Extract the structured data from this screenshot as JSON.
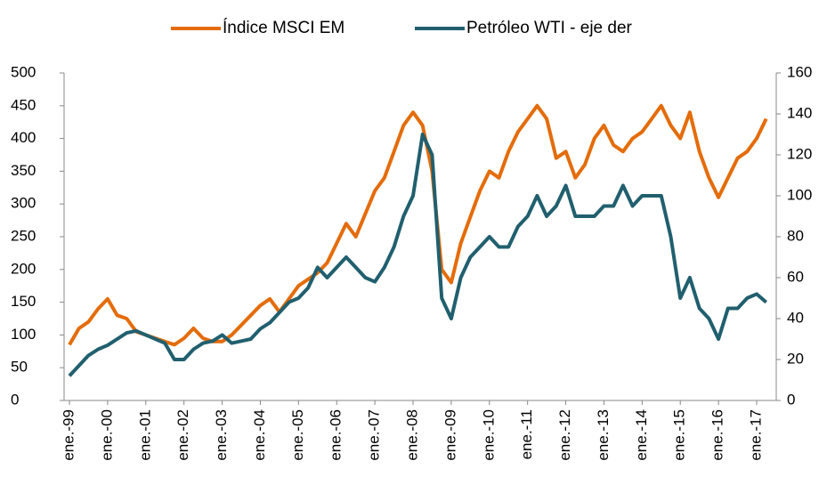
{
  "chart_data": {
    "type": "line",
    "categories": [
      "ene.-99",
      null,
      null,
      null,
      "ene.-00",
      null,
      null,
      null,
      "ene.-01",
      null,
      null,
      null,
      "ene.-02",
      null,
      null,
      null,
      "ene.-03",
      null,
      null,
      null,
      "ene.-04",
      null,
      null,
      null,
      "ene.-05",
      null,
      null,
      null,
      "ene.-06",
      null,
      null,
      null,
      "ene.-07",
      null,
      null,
      null,
      "ene.-08",
      null,
      null,
      null,
      "ene.-09",
      null,
      null,
      null,
      "ene.-10",
      null,
      null,
      null,
      "ene.-11",
      null,
      null,
      null,
      "ene.-12",
      null,
      null,
      null,
      "ene.-13",
      null,
      null,
      null,
      "ene.-14",
      null,
      null,
      null,
      "ene.-15",
      null,
      null,
      null,
      "ene.-16",
      null,
      null,
      null,
      "ene.-17",
      null
    ],
    "series": [
      {
        "name": "Índice MSCI EM",
        "color": "#e46c0a",
        "values": [
          85,
          110,
          120,
          140,
          155,
          130,
          125,
          105,
          100,
          95,
          90,
          85,
          95,
          110,
          95,
          90,
          90,
          100,
          115,
          130,
          145,
          155,
          135,
          155,
          175,
          185,
          195,
          210,
          240,
          270,
          250,
          285,
          320,
          340,
          380,
          420,
          440,
          420,
          350,
          200,
          180,
          240,
          280,
          320,
          350,
          340,
          380,
          410,
          430,
          450,
          430,
          370,
          380,
          340,
          360,
          400,
          420,
          390,
          380,
          400,
          410,
          430,
          450,
          420,
          400,
          440,
          380,
          340,
          310,
          340,
          370,
          380,
          400,
          430
        ]
      },
      {
        "name": "Petróleo WTI - eje der",
        "color": "#215f6e",
        "axis": "y2",
        "values": [
          12,
          17,
          22,
          25,
          27,
          30,
          33,
          34,
          32,
          30,
          28,
          20,
          20,
          25,
          28,
          29,
          32,
          28,
          29,
          30,
          35,
          38,
          43,
          48,
          50,
          55,
          65,
          60,
          65,
          70,
          65,
          60,
          58,
          65,
          75,
          90,
          100,
          130,
          120,
          50,
          40,
          60,
          70,
          75,
          80,
          75,
          75,
          85,
          90,
          100,
          90,
          95,
          105,
          90,
          90,
          90,
          95,
          95,
          105,
          95,
          100,
          100,
          100,
          80,
          50,
          60,
          45,
          40,
          30,
          45,
          45,
          50,
          52,
          48
        ]
      }
    ],
    "ylim": [
      0,
      500
    ],
    "yticks": [
      0,
      50,
      100,
      150,
      200,
      250,
      300,
      350,
      400,
      450,
      500
    ],
    "y2lim": [
      0,
      160
    ],
    "y2ticks": [
      0,
      20,
      40,
      60,
      80,
      100,
      120,
      140,
      160
    ],
    "legend": "top"
  }
}
